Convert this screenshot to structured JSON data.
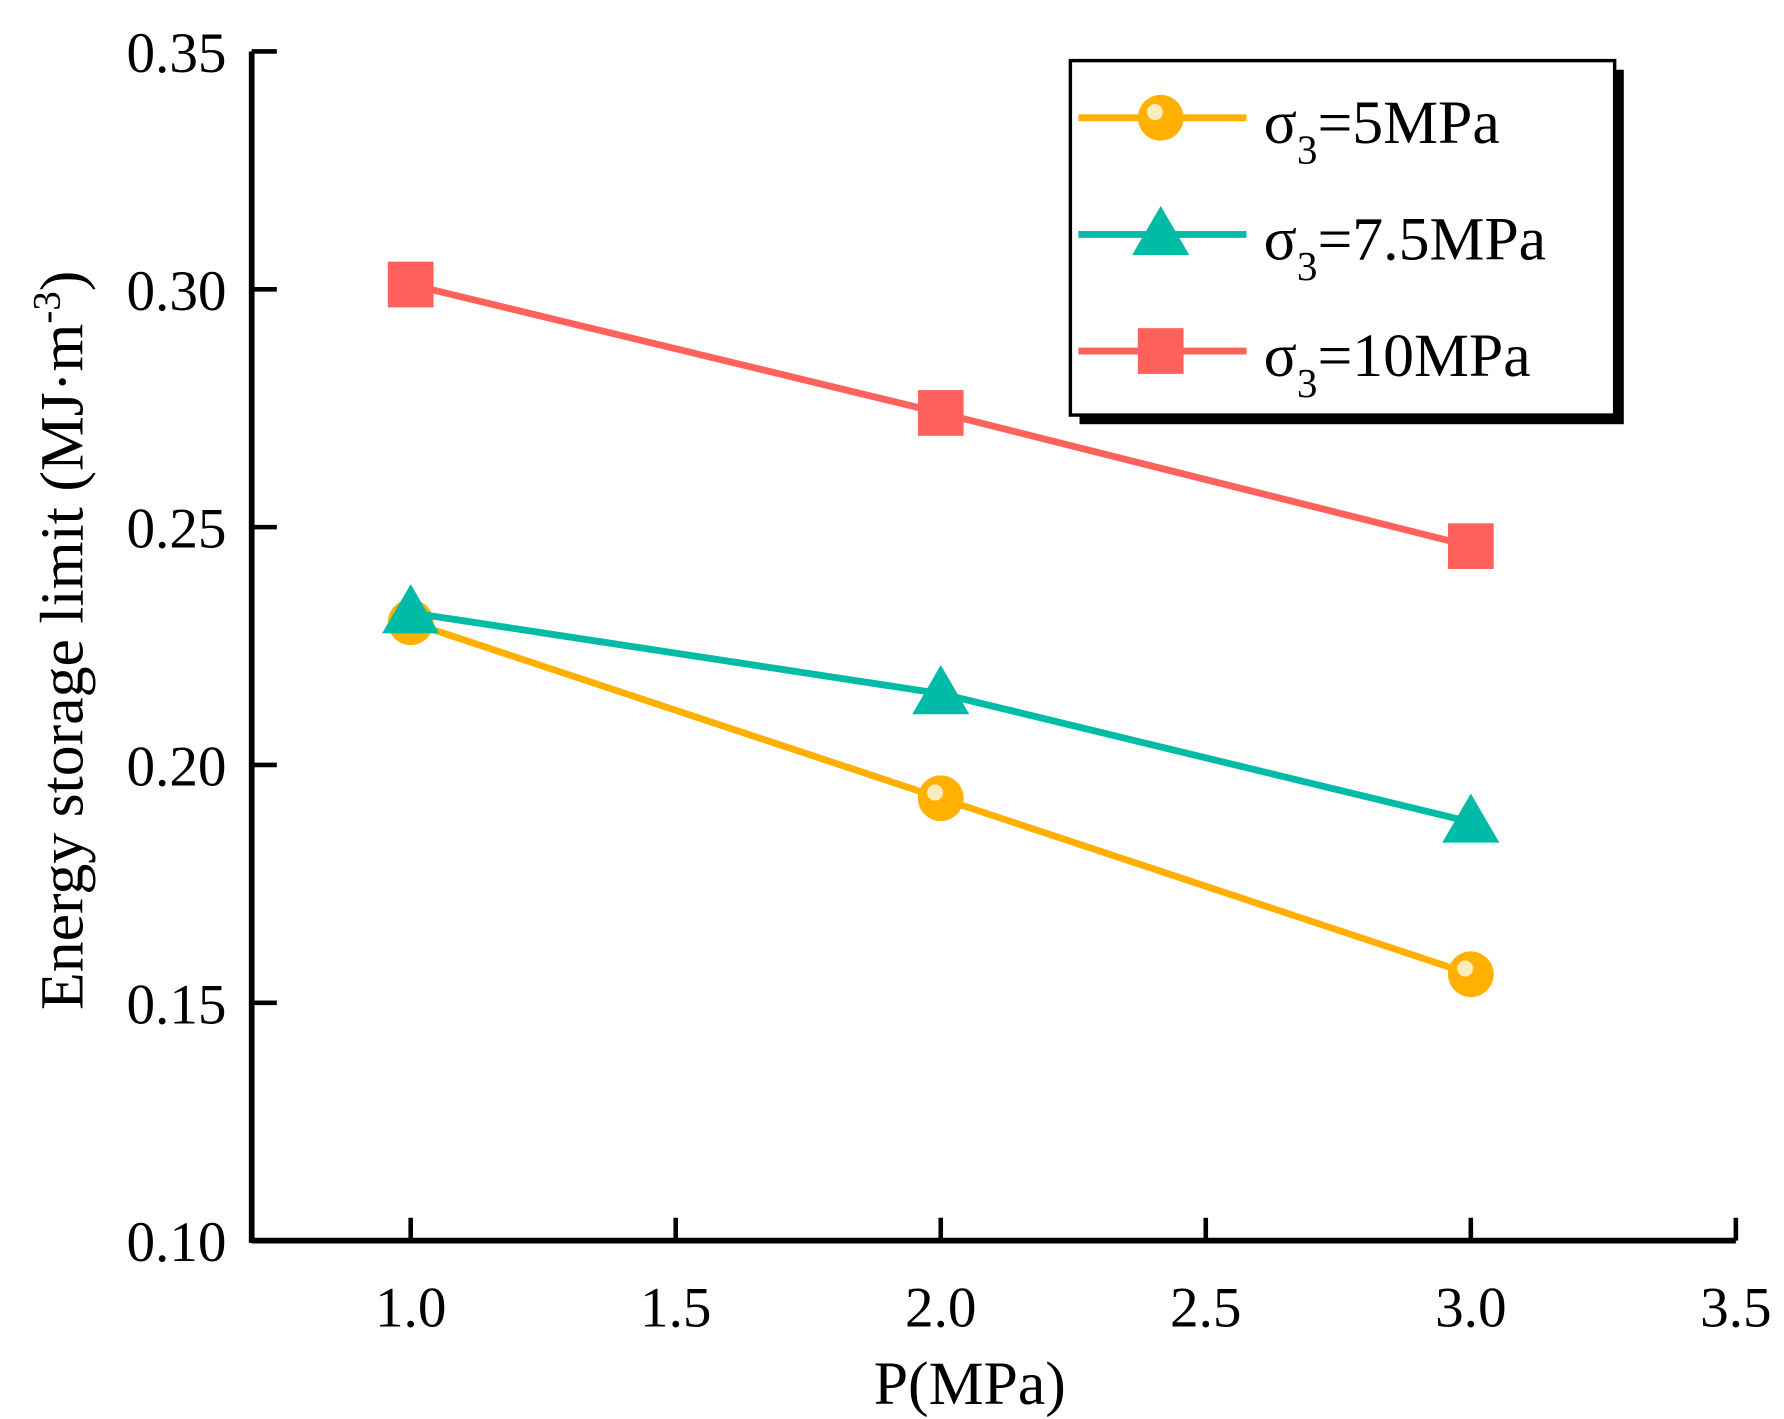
{
  "chart_data": {
    "type": "line",
    "title": "",
    "xlabel": "P(MPa)",
    "ylabel": "Energy storage limit (MJ·m⁻³)",
    "ylabel_parts": {
      "main": "Energy storage limit (MJ·m",
      "sup": "-3",
      "close": ")"
    },
    "xlim": [
      0.7,
      3.5
    ],
    "ylim": [
      0.1,
      0.35
    ],
    "xticks": [
      1.0,
      1.5,
      2.0,
      2.5,
      3.0,
      3.5
    ],
    "xtick_labels": [
      "1.0",
      "1.5",
      "2.0",
      "2.5",
      "3.0",
      "3.5"
    ],
    "yticks": [
      0.1,
      0.15,
      0.2,
      0.25,
      0.3,
      0.35
    ],
    "ytick_labels": [
      "0.10",
      "0.15",
      "0.20",
      "0.25",
      "0.30",
      "0.35"
    ],
    "grid": false,
    "legend_position": "top-right",
    "x": [
      1.0,
      2.0,
      3.0
    ],
    "series": [
      {
        "name": "σ3=5MPa",
        "label_main": "σ",
        "label_sub": "3",
        "label_rest": "=5MPa",
        "marker": "circle",
        "color": "#FFB000",
        "values": [
          0.23,
          0.193,
          0.156
        ]
      },
      {
        "name": "σ3=7.5MPa",
        "label_main": "σ",
        "label_sub": "3",
        "label_rest": "=7.5MPa",
        "marker": "triangle",
        "color": "#00BBA6",
        "values": [
          0.232,
          0.215,
          0.188
        ]
      },
      {
        "name": "σ3=10MPa",
        "label_main": "σ",
        "label_sub": "3",
        "label_rest": "=10MPa",
        "marker": "square",
        "color": "#FF625C",
        "values": [
          0.301,
          0.274,
          0.246
        ]
      }
    ]
  }
}
